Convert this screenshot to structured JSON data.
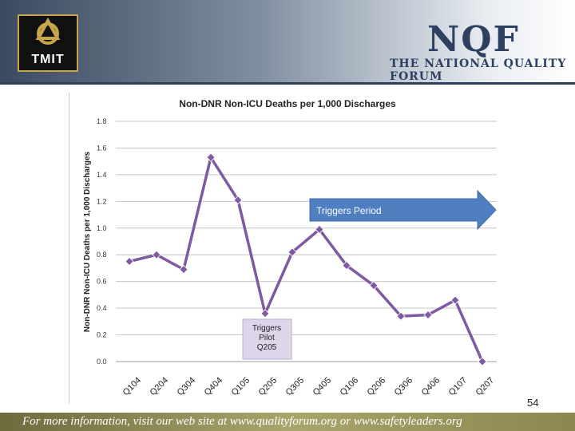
{
  "header": {
    "left_logo_text": "TMIT",
    "right_logo_text": "NQF",
    "right_logo_subtitle": "THE NATIONAL QUALITY FORUM"
  },
  "footer": {
    "text": "For more information, visit our web site at www.qualityforum.org or www.safetyleaders.org"
  },
  "page_number": "54",
  "chart_data": {
    "type": "line",
    "title": "Non-DNR Non-ICU Deaths per 1,000 Discharges",
    "xlabel": "",
    "ylabel": "Non-DNR Non-ICU Deaths per 1,000 Discharges",
    "categories": [
      "Q104",
      "Q204",
      "Q304",
      "Q404",
      "Q105",
      "Q205",
      "Q305",
      "Q405",
      "Q106",
      "Q206",
      "Q306",
      "Q406",
      "Q107",
      "Q207"
    ],
    "series": [
      {
        "name": "Non-DNR Non-ICU Deaths per 1,000 Discharges",
        "color": "#7e5aa2",
        "values": [
          0.75,
          0.8,
          0.69,
          1.53,
          1.21,
          0.36,
          0.82,
          0.99,
          0.72,
          0.57,
          0.34,
          0.35,
          0.46,
          0.0
        ]
      }
    ],
    "ylim": [
      0,
      1.8
    ],
    "yticks": [
      "0.0",
      "0.2",
      "0.4",
      "0.6",
      "0.8",
      "1.0",
      "1.2",
      "1.4",
      "1.6",
      "1.8"
    ],
    "grid": true,
    "annotations": {
      "arrow_label": "Triggers Period",
      "arrow_color": "#4f7fc1",
      "pilot_label_lines": [
        "Triggers",
        "Pilot",
        "Q205"
      ],
      "pilot_box_color": "#ddd5ea"
    }
  }
}
